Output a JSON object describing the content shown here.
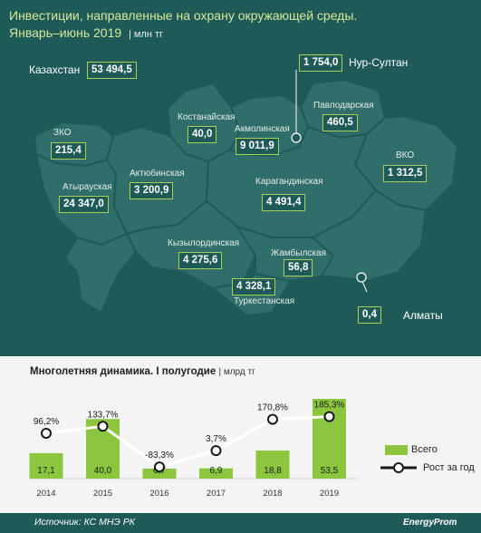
{
  "title": {
    "line1": "Инвестиции, направленные на охрану окружающей среды.",
    "line2": "Январь–июнь 2019",
    "unit": "| млн тг"
  },
  "map": {
    "total": {
      "label": "Казахстан",
      "value": "53 494,5"
    },
    "regions": [
      {
        "name": "ЗКО",
        "value": "215,4"
      },
      {
        "name": "Атырауская",
        "value": "24 347,0"
      },
      {
        "name": "Актюбинская",
        "value": "3 200,9"
      },
      {
        "name": "Костанайская",
        "value": "40,0"
      },
      {
        "name": "Акмолинская",
        "value": "9 011,9"
      },
      {
        "name": "Павлодарская",
        "value": "460,5"
      },
      {
        "name": "ВКО",
        "value": "1 312,5"
      },
      {
        "name": "Карагандинская",
        "value": "4 491,4"
      },
      {
        "name": "Кызылординская",
        "value": "4 275,6"
      },
      {
        "name": "Жамбылская",
        "value": "56,8"
      },
      {
        "name": "Туркестанская",
        "value": "4 328,1"
      }
    ],
    "cities": [
      {
        "name": "Нур-Султан",
        "value": "1 754,0"
      },
      {
        "name": "Алматы",
        "value": "0,4"
      }
    ]
  },
  "colors": {
    "background": "#1e5a57",
    "map_fill": "#2f6e6a",
    "accent": "#a8cf59",
    "bar": "#8cc63f",
    "line": "#ffffff"
  },
  "chart_data": {
    "type": "bar",
    "title": "Многолетняя динамика. I полугодие",
    "unit": "| млрд тг",
    "categories": [
      "2014",
      "2015",
      "2016",
      "2017",
      "2018",
      "2019"
    ],
    "series": [
      {
        "name": "Всего",
        "type": "bar",
        "values": [
          17.1,
          40.0,
          6.7,
          6.9,
          18.8,
          53.5
        ],
        "labels": [
          "17,1",
          "40,0",
          "6,7",
          "6,9",
          "18,8",
          "53,5"
        ]
      },
      {
        "name": "Рост за год",
        "type": "line",
        "values": [
          96.2,
          133.7,
          -83.3,
          3.7,
          170.8,
          185.3
        ],
        "labels": [
          "96,2%",
          "133,7%",
          "-83,3%",
          "3,7%",
          "170,8%",
          "185,3%"
        ]
      }
    ],
    "legend": "right"
  },
  "footer": {
    "source": "Источник: КС МНЭ РК",
    "brand": "EnergyProm"
  }
}
